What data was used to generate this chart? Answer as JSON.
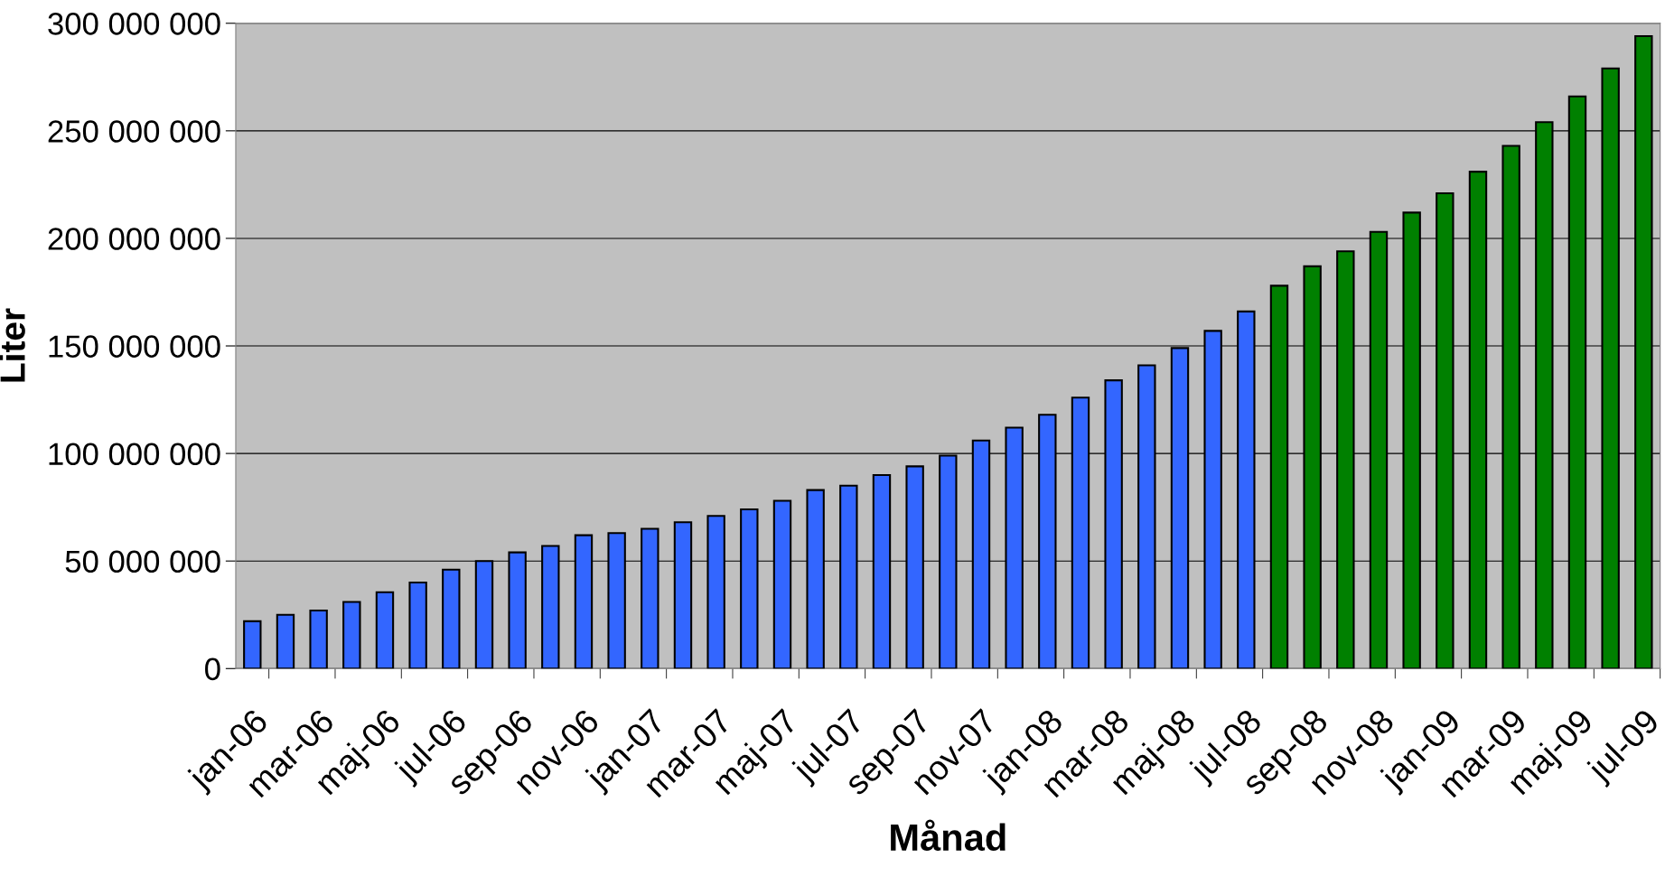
{
  "chart_data": {
    "type": "bar",
    "xlabel": "Månad",
    "ylabel": "Liter",
    "categories": [
      "jan-06",
      null,
      "mar-06",
      null,
      "maj-06",
      null,
      "jul-06",
      null,
      "sep-06",
      null,
      "nov-06",
      null,
      "jan-07",
      null,
      "mar-07",
      null,
      "maj-07",
      null,
      "jul-07",
      null,
      "sep-07",
      null,
      "nov-07",
      null,
      "jan-08",
      null,
      "mar-08",
      null,
      "maj-08",
      null,
      "jul-08",
      null,
      "sep-08",
      null,
      "nov-08",
      null,
      "jan-09",
      null,
      "mar-09",
      null,
      "maj-09",
      null,
      "jul-09"
    ],
    "values": [
      22000000,
      25000000,
      27000000,
      31000000,
      35500000,
      40000000,
      46000000,
      50000000,
      54000000,
      57000000,
      62000000,
      63000000,
      65000000,
      68000000,
      71000000,
      74000000,
      78000000,
      83000000,
      85000000,
      90000000,
      94000000,
      99000000,
      106000000,
      112000000,
      118000000,
      126000000,
      134000000,
      141000000,
      149000000,
      157000000,
      166000000,
      178000000,
      187000000,
      194000000,
      203000000,
      212000000,
      221000000,
      231000000,
      243000000,
      254000000,
      266000000,
      279000000,
      294000000
    ],
    "colors": [
      "#3366ff",
      "#3366ff",
      "#3366ff",
      "#3366ff",
      "#3366ff",
      "#3366ff",
      "#3366ff",
      "#3366ff",
      "#3366ff",
      "#3366ff",
      "#3366ff",
      "#3366ff",
      "#3366ff",
      "#3366ff",
      "#3366ff",
      "#3366ff",
      "#3366ff",
      "#3366ff",
      "#3366ff",
      "#3366ff",
      "#3366ff",
      "#3366ff",
      "#3366ff",
      "#3366ff",
      "#3366ff",
      "#3366ff",
      "#3366ff",
      "#3366ff",
      "#3366ff",
      "#3366ff",
      "#3366ff",
      "#008000",
      "#008000",
      "#008000",
      "#008000",
      "#008000",
      "#008000",
      "#008000",
      "#008000",
      "#008000",
      "#008000",
      "#008000",
      "#008000"
    ],
    "ylim": [
      0,
      300000000
    ],
    "yticks": [
      {
        "value": 0,
        "label": "0"
      },
      {
        "value": 50000000,
        "label": "50 000 000"
      },
      {
        "value": 100000000,
        "label": "100 000 000"
      },
      {
        "value": 150000000,
        "label": "150 000 000"
      },
      {
        "value": 200000000,
        "label": "200 000 000"
      },
      {
        "value": 250000000,
        "label": "250 000 000"
      },
      {
        "value": 300000000,
        "label": "300 000 000"
      }
    ],
    "grid": "y",
    "legend": false
  }
}
